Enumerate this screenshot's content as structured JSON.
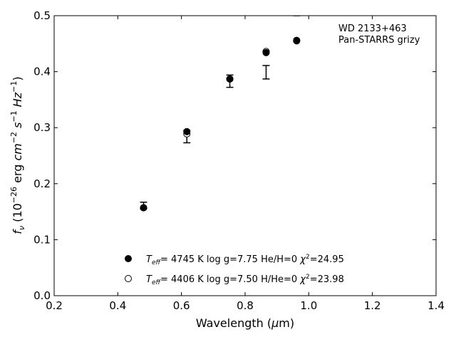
{
  "chart_data": {
    "type": "scatter",
    "title": "",
    "xlabel": "Wavelength (μm)",
    "ylabel": "f_ν (10^-26 erg cm^-2 s^-1 Hz^-1)",
    "xlim": [
      0.2,
      1.4
    ],
    "ylim": [
      0.0,
      0.5
    ],
    "xticks": [
      0.2,
      0.4,
      0.6,
      0.8,
      1.0,
      1.2,
      1.4
    ],
    "xtick_labels": [
      "0.2",
      "0.4",
      "0.6",
      "0.8",
      "1.0",
      "1.2",
      "1.4"
    ],
    "yticks": [
      0.0,
      0.1,
      0.2,
      0.3,
      0.4,
      0.5
    ],
    "ytick_labels": [
      "0.0",
      "0.1",
      "0.2",
      "0.3",
      "0.4",
      "0.5"
    ],
    "annotation": [
      "WD 2133+463",
      "Pan-STARRS grizy"
    ],
    "observed": {
      "x": [
        0.481,
        0.617,
        0.752,
        0.866,
        0.962
      ],
      "y": [
        0.161,
        0.284,
        0.383,
        0.399,
        0.512
      ],
      "err": [
        0.006,
        0.011,
        0.011,
        0.012,
        0.012
      ]
    },
    "series": [
      {
        "name": "T_eff=  4745 K  log g=7.75  He/H=0  χ²=24.95",
        "marker": "filled-circle",
        "x": [
          0.481,
          0.617,
          0.752,
          0.866,
          0.962
        ],
        "y": [
          0.157,
          0.293,
          0.387,
          0.434,
          0.455
        ]
      },
      {
        "name": "T_eff=  4406 K  log g=7.50  H/He=0  χ²=23.98",
        "marker": "open-circle",
        "x": [
          0.481,
          0.617,
          0.752,
          0.866,
          0.962
        ],
        "y": [
          0.157,
          0.289,
          0.387,
          0.436,
          0.456
        ]
      }
    ],
    "legend_placement": "bottom-center",
    "grid": false
  }
}
